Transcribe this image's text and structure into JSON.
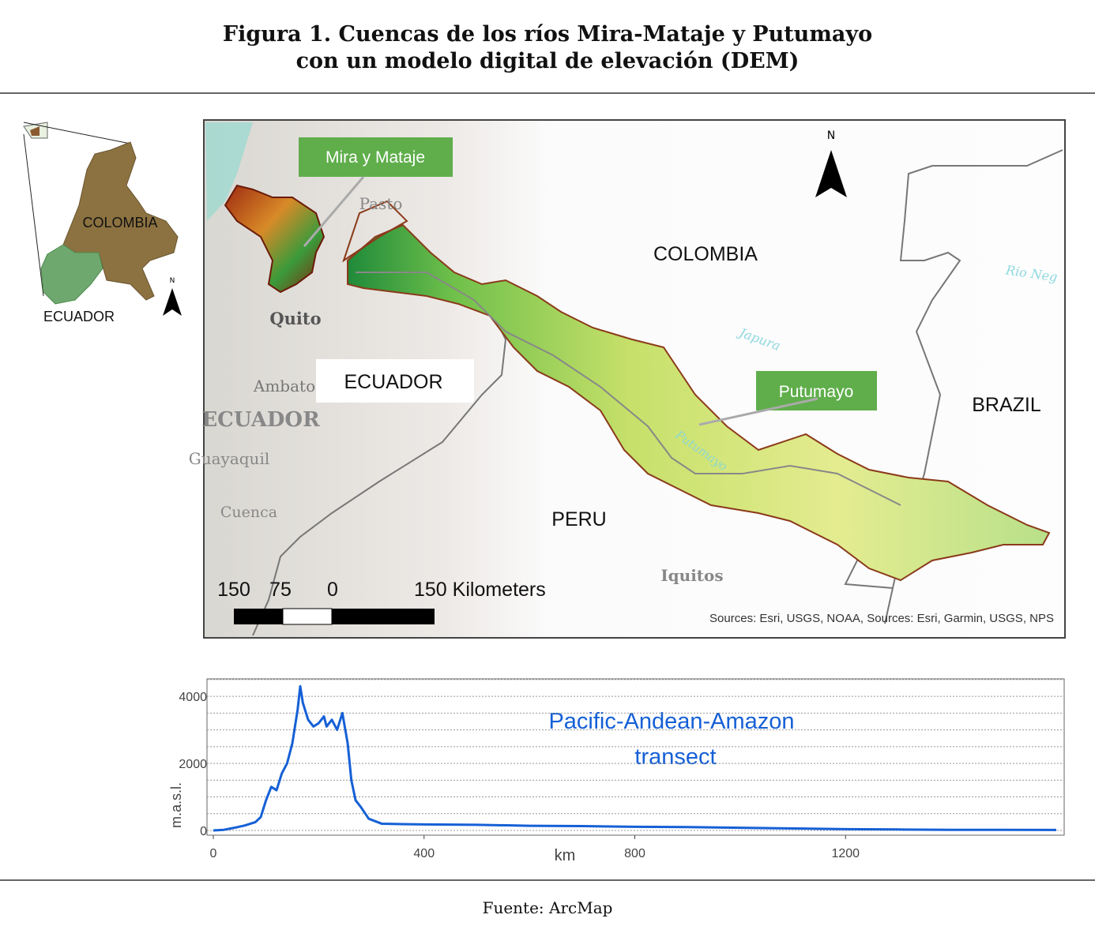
{
  "header": {
    "title_lines": [
      "Figura 1. Cuencas de los ríos Mira-Mataje y Putumayo",
      "con un modelo digital de elevación (DEM)"
    ]
  },
  "inset": {
    "labels": [
      "COLOMBIA",
      "ECUADOR"
    ],
    "north": "N"
  },
  "map": {
    "callouts": [
      "Mira y Mataje",
      "Putumayo"
    ],
    "countries": [
      "COLOMBIA",
      "ECUADOR",
      "PERU",
      "BRAZIL"
    ],
    "places": [
      "Pasto",
      "Quito",
      "Ambato",
      "ECUADOR",
      "Guayaquil",
      "Cuenca",
      "Iquitos",
      "Japura",
      "Putumayo",
      "Rio Neg"
    ],
    "north": "N",
    "scale_labels": [
      "150",
      "75",
      "0",
      "150 Kilometers"
    ],
    "sources": "Sources: Esri, USGS, NOAA, Sources: Esri, Garmin, USGS, NPS"
  },
  "chart_data": {
    "type": "line",
    "y_label": "m.a.s.l.",
    "x_label": "km",
    "annotation": [
      "Pacific-Andean-Amazon",
      "transect"
    ],
    "x": [
      0,
      20,
      40,
      60,
      80,
      90,
      100,
      110,
      120,
      130,
      140,
      150,
      155,
      160,
      165,
      170,
      180,
      190,
      200,
      210,
      215,
      225,
      235,
      245,
      255,
      262,
      270,
      280,
      295,
      320,
      400,
      500,
      600,
      700,
      800,
      900,
      1000,
      1100,
      1200,
      1300,
      1400,
      1500,
      1600
    ],
    "series": [
      {
        "name": "Pacific-Andean-Amazon transect",
        "color": "#1560d6",
        "values": [
          0,
          20,
          80,
          150,
          250,
          400,
          900,
          1300,
          1200,
          1700,
          2000,
          2600,
          3100,
          3600,
          4300,
          3800,
          3300,
          3100,
          3200,
          3400,
          3100,
          3300,
          3000,
          3500,
          2600,
          1500,
          900,
          700,
          350,
          200,
          180,
          170,
          140,
          130,
          110,
          100,
          80,
          60,
          40,
          30,
          20,
          20,
          15
        ]
      }
    ],
    "xlim": [
      -12,
      1615
    ],
    "xticks": [
      0,
      400,
      800,
      1200
    ],
    "ylim": [
      -140,
      4520
    ],
    "yticks": [
      0,
      2000,
      4000
    ],
    "minor_yticks": [
      500,
      1000,
      1500,
      2500,
      3000,
      3500,
      4500
    ],
    "grid": true
  },
  "footer": {
    "source": "Fuente: ArcMap"
  }
}
